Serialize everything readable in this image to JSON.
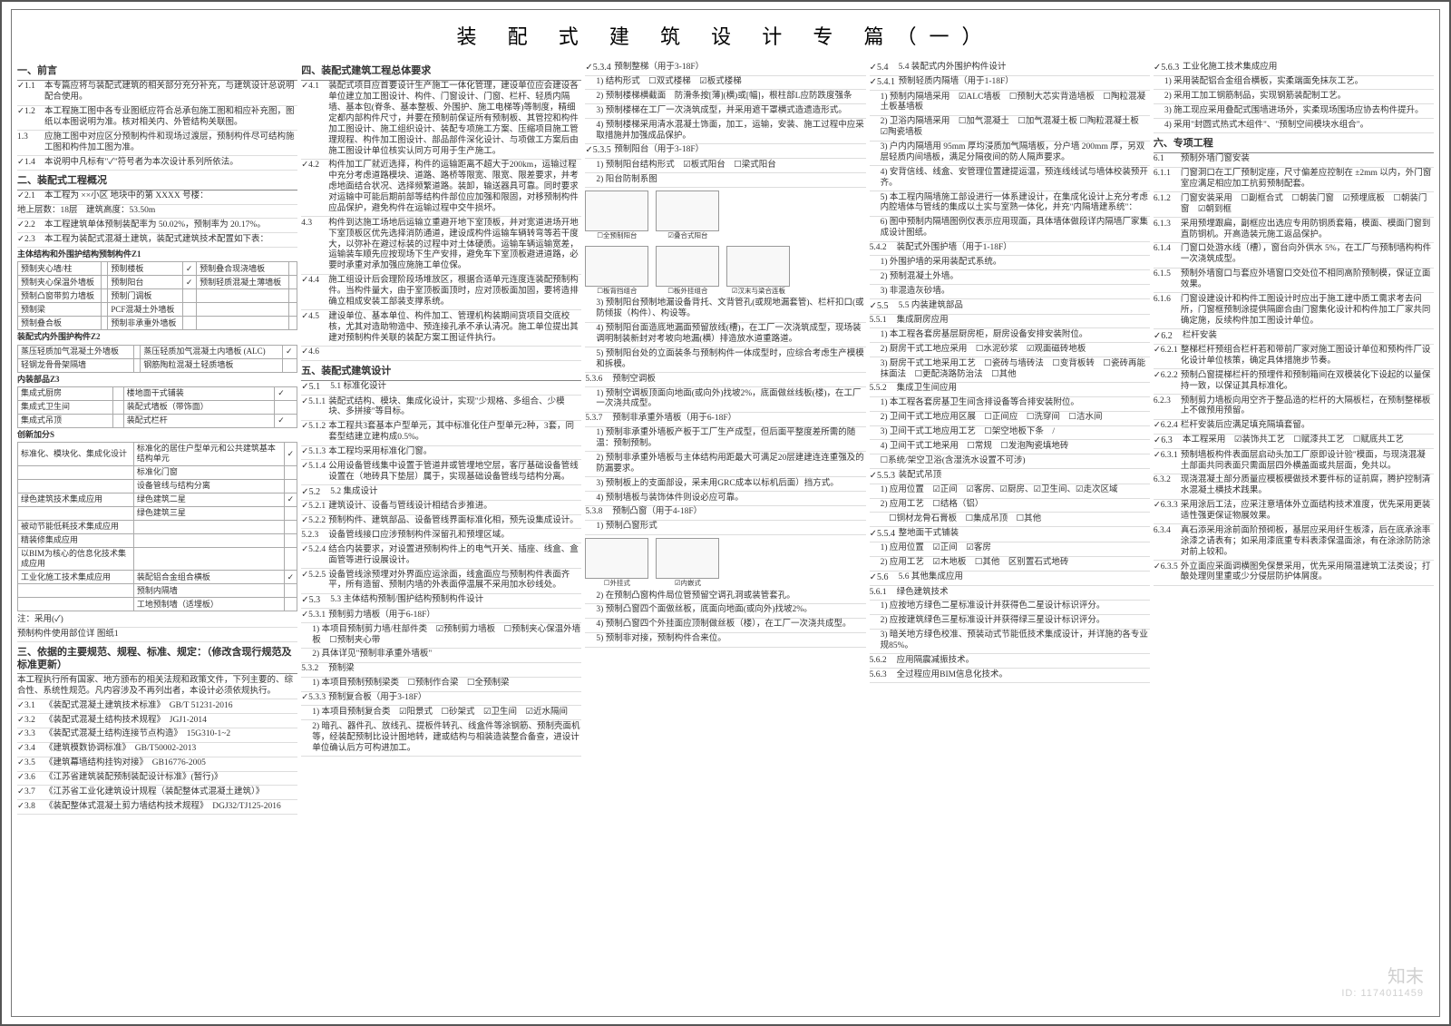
{
  "title": "装 配 式 建 筑 设 计 专 篇（一）",
  "watermark": {
    "brand": "知末",
    "id": "ID: 1174011459"
  },
  "sections": {
    "s1": {
      "h": "一、前言",
      "r": [
        {
          "n": "1.1",
          "c": true,
          "t": "本专篇应将与装配式建筑的相关部分充分补充，与建筑设计总说明配合使用。"
        },
        {
          "n": "1.2",
          "c": true,
          "t": "本工程施工图中各专业图纸应符合总承包施工图和相应补充图，图纸以本图说明为准。核对相关内、外管结构关联图。"
        },
        {
          "n": "1.3",
          "c": false,
          "t": "应施工图中对应区分预制构件和现场过渡层，预制构件尽可结构施工图和构件加工图为准。"
        },
        {
          "n": "1.4",
          "c": true,
          "t": "本说明中凡标有\"✓\"符号者为本次设计系列所依法。"
        }
      ]
    },
    "s2": {
      "h": "二、装配式工程概况",
      "r": [
        {
          "n": "2.1",
          "c": true,
          "t": "本工程为 ××小区 地块中的第 XXXX 号楼："
        },
        {
          "n": "",
          "c": false,
          "t": "地上层数：18层　建筑高度：53.50m"
        },
        {
          "n": "2.2",
          "c": true,
          "t": "本工程建筑单体预制装配率为 50.02%，预制率为 20.17%。"
        },
        {
          "n": "2.3",
          "c": true,
          "t": "本工程为装配式混凝土建筑，装配式建筑技术配置如下表："
        }
      ],
      "tbl1": {
        "caption": "主体结构和外围护结构预制构件Z1",
        "rows": [
          [
            "预制夹心墙/柱",
            "",
            "预制楼板",
            "✓",
            "预制叠合现浇墙板",
            ""
          ],
          [
            "预制夹心保温外墙板",
            "",
            "预制阳台",
            "✓",
            "预制轻质混凝土薄墙板",
            ""
          ],
          [
            "预制凸窗带剪力墙板",
            "",
            "预制门调板",
            "",
            "",
            " "
          ],
          [
            "预制梁",
            "",
            "PCF混凝土外墙板",
            "",
            "",
            " "
          ],
          [
            "预制叠合板",
            "",
            "预制非承重外墙板",
            "",
            "",
            " "
          ]
        ]
      },
      "tbl2": {
        "caption": "装配式内外围护构件Z2",
        "rows": [
          [
            "蒸压轻质加气混凝土外墙板",
            "",
            "蒸压轻质加气混凝土内墙板 (ALC)",
            "✓"
          ],
          [
            "轻钢龙骨骨架隔墙",
            "",
            "钢筋陶粒混凝土轻质墙板",
            ""
          ]
        ]
      },
      "tbl3": {
        "caption": "内装部品Z3",
        "rows": [
          [
            "集成式厨房",
            "",
            "楼地面干式铺装",
            "✓"
          ],
          [
            "集成式卫生间",
            "",
            "装配式墙板（带饰面）",
            ""
          ],
          [
            "集成式吊顶",
            "",
            "装配式栏杆",
            "✓"
          ]
        ]
      },
      "tbl4": {
        "caption": "创新加分S",
        "rows": [
          [
            "标准化、模块化、集成化设计",
            "标准化的居住户型单元和公共建筑基本结构单元",
            "✓"
          ],
          [
            "",
            "标准化门窗",
            ""
          ],
          [
            "",
            "设备管线与结构分离",
            ""
          ],
          [
            "绿色建筑技术集成应用",
            "绿色建筑二星",
            "✓"
          ],
          [
            "",
            "绿色建筑三星",
            ""
          ],
          [
            "被动节能低耗技术集成应用",
            "",
            " "
          ],
          [
            "精装修集成应用",
            "",
            " "
          ],
          [
            "以BIM为核心的信息化技术集成应用",
            "",
            " "
          ],
          [
            "工业化施工技术集成应用",
            "装配铝合金组合横板",
            "✓"
          ],
          [
            "",
            "预制内隔墙",
            " "
          ],
          [
            "",
            "工地预制墙（适埋板）",
            ""
          ]
        ]
      },
      "tail": [
        {
          "t": "注：采用(✓)"
        },
        {
          "t": "预制构件使用部位详 图纸1"
        }
      ]
    },
    "s3": {
      "h": "三、依据的主要规范、规程、标准、规定：（修改含现行规范及标准更新）",
      "intro": "本工程执行所有国家、地方颁布的相关法规和政策文件，下列主要的、综合性、系统性规范。凡内容涉及不再列出者，本设计必须依规执行。",
      "r": [
        {
          "n": "3.1",
          "c": true,
          "t": "《装配式混凝土建筑技术标准》　GB/T 51231-2016"
        },
        {
          "n": "3.2",
          "c": true,
          "t": "《装配式混凝土结构技术规程》　JGJ1-2014"
        },
        {
          "n": "3.3",
          "c": true,
          "t": "《装配式混凝土结构连接节点构造》　15G310-1~2"
        },
        {
          "n": "3.4",
          "c": true,
          "t": "《建筑模数协调标准》　GB/T50002-2013"
        },
        {
          "n": "3.5",
          "c": true,
          "t": "《建筑幕墙结构挂钩对接》　GB16776-2005"
        },
        {
          "n": "3.6",
          "c": true,
          "t": "《江苏省建筑装配预制装配设计标准》(暂行)》"
        },
        {
          "n": "3.7",
          "c": true,
          "t": "《江苏省工业化建筑设计规程（装配整体式混凝土建筑）》"
        },
        {
          "n": "3.8",
          "c": true,
          "t": "《装配整体式混凝土剪力墙结构技术规程》　DGJ32/TJ125-2016"
        }
      ]
    },
    "s4": {
      "h": "四、装配式建筑工程总体要求",
      "r": [
        {
          "n": "4.1",
          "c": true,
          "t": "装配式项目应首要设计生产施工一体化管理，建设单位应会建设各单位建立加工图设计、构件、门窗设计、门窗、栏杆、轻质内隔墙、基本包(脊条、基本整板、外围护、施工电梯等)等制度，精细定都内部构件尺寸，并要在预制前保证所有预制板、其管控和构件加工图设计、施工组织设计、装配专项施工方案、压缩项目施工管理规程、构件加工图设计、部品部件深化设计、与项做工方案后由施工图设计单位核实认同方可用于生产施工。"
        },
        {
          "n": "4.2",
          "c": true,
          "t": "构件加工厂就近选择，构件的运输距离不超大于200km，运输过程中充分考虑道路模块、道路、路桥等限宽、限宽、限差要求，并考虑地面结合状况、选择频繁道路。装卸，输送器具可靠。同时要求对运输中可能后期前部等结构件部位应加强和限固，对移预制构件应品保护，避免构件在运输过程中交牛损坏。"
        },
        {
          "n": "4.3",
          "c": false,
          "t": "构件到达施工场地后运输立重避开地下室顶板，并对宽道进场开地下室顶板区优先选择消防通道，建设成构件运输车辆转弯等若干度大，以弥补在避过标装的过程中对土体硬质。运输车辆运输宽差，运输装车顺先应按现场下生产安排，避免车下室顶板避进道路，必要时承重对承加强应施施工单位保。"
        },
        {
          "n": "4.4",
          "c": true,
          "t": "施工组设计后会理阶段场堆放区，根据合适单元连度连装配预制构件。当构件量大，由于室顶板面顶时，应对顶板面加固，要将造排确立相成安装工部装支撑系统。"
        },
        {
          "n": "4.5",
          "c": true,
          "t": "建设单位、基本单位、构件加工、管理机构装期间货项目交底校核，尤其对造助物造中、预连接孔承不承认清况。施工单位提出其建对预制构件关联的装配方案工图证件执行。"
        },
        {
          "n": "4.6",
          "c": true,
          "t": ""
        }
      ]
    },
    "s5": {
      "h": "五、装配式建筑设计",
      "g51": {
        "h": "5.1 标准化设计",
        "r": [
          {
            "n": "5.1.1",
            "c": true,
            "t": "装配式结构、模块、集成化设计，实现\"少规格、多组合、少模块、多拼接\"等目标。"
          },
          {
            "n": "5.1.2",
            "c": true,
            "t": "本工程共3套基本户型单元，其中标准化住户型单元2种，3套，同套型结建立建构成0.5%。"
          },
          {
            "n": "5.1.3",
            "c": true,
            "t": "本工程均采用标准化门窗。"
          },
          {
            "n": "5.1.4",
            "c": true,
            "t": "公用设备管线集中设置于管道井或管埋地空层，客厅基础设备管线设置在（地砖具下垫层）属于，实现基础设备管线与结构分离。"
          }
        ]
      },
      "g52": {
        "h": "5.2 集成设计",
        "r": [
          {
            "n": "5.2.1",
            "c": true,
            "t": "建筑设计、设备与管线设计相结合步推进。"
          },
          {
            "n": "5.2.2",
            "c": true,
            "t": "预制构件、建筑部品、设备管线界面标准化相，预先设集成设计。"
          },
          {
            "n": "5.2.3",
            "c": false,
            "t": "设备管线接口应涉预制构件深留孔和预埋区域。"
          },
          {
            "n": "5.2.4",
            "c": true,
            "t": "结合内装要求，对设置进预制构件上的电气开关、插座、线盒、盒面管等进行设展设计。"
          },
          {
            "n": "5.2.5",
            "c": true,
            "t": "设备管线涂预埋对外界面应运涂面，线盒面应与预制构件表面齐平，所有造留、预制内墙的外表面停温展不采用加水砂线处。"
          }
        ]
      },
      "g53": {
        "h": "5.3 主体结构预制/围护结构预制构件设计",
        "r": [
          {
            "n": "5.3.1",
            "c": true,
            "t": "预制剪力墙板（用于6-18F）",
            "sub": [
              "1) 本项目预制剪力墙/柱部件类　☑预制剪力墙板　☐预制夹心保温外墙板　☐预制夹心带",
              "2) 具体详见\"预制非承重外墙板\""
            ]
          },
          {
            "n": "5.3.2",
            "c": false,
            "t": "预制梁",
            "sub": [
              "1) 本项目预制预制梁类　☐预制作合梁　☐全预制梁"
            ]
          },
          {
            "n": "5.3.3",
            "c": true,
            "t": "预制复合板（用于3-18F）",
            "sub": [
              "1) 本项目预制复合类　☑阳景式　☐砂架式　☑卫生间　☑近水隔间",
              "2) 暗孔、器件孔、放线孔、提板件转孔、线盒件等涂钢筋、预制壳面机等，经装配预制比设计图地转，建或结构与相装造装整合备查，进设计单位确认后方可构进加工。"
            ]
          }
        ]
      },
      "g534": {
        "n": "5.3.4",
        "c": true,
        "t": "预制整梯（用于3-18F）",
        "sub": [
          "1) 结构形式　☐双式楼梯　☑板式楼梯",
          "2) 预制楼梯横截面　防滑条按[薄](横)或[幅]，根柱部L应防跌度强条"
        ],
        "r": [
          "3) 预制楼梯在工厂一次浇筑成型，并采用遮干罩横式造遗造形式。",
          "4) 预制楼梯采用清水混凝土饰面，加工，运输，安装、施工过程中应采取措施并加强成品保护。"
        ]
      },
      "g535": {
        "n": "5.3.5",
        "c": true,
        "t": "预制阳台（用于3-18F）",
        "sub": [
          "1) 预制阳台结构形式　☑板式阳台　☐梁式阳台",
          "2) 阳台防制系图"
        ],
        "fig": [
          {
            "c": "☐全预制阳台"
          },
          {
            "c": "☑叠合式阳台"
          },
          {
            "c": "☐板背挡组合"
          },
          {
            "c": "☐板外挂组合"
          },
          {
            "c": "☑汉末与梁合连板"
          }
        ],
        "r": [
          "3) 预制阳台预制地漏设备背托、文背管孔(或规地漏套管)、栏杆扣口(或防倾拔（构件）、构设等。",
          "4) 预制阳台面造底地漏面预留放线(槽)，在工厂一次浇筑成型，现场装调明制装新封对考坡向地漏(横）排造放水道重路道。",
          "5) 预制阳台处的立面装条与预制构件一体成型时，应综合考虑生产模模和拆模。"
        ]
      },
      "g536": {
        "n": "5.3.6",
        "t": "预制空调板",
        "r": [
          "1) 预制空调板顶面向地面(或向外)找坡2%，底面做丝线板(楼)，在工厂一次浇共成型。"
        ]
      },
      "g537": {
        "n": "5.3.7",
        "t": "预制非承重外墙板（用于6-18F）",
        "r": [
          "1) 预制非承重外墙板产板于工厂生产成型，但后面平整度差所需的随温：预制预制。",
          "2) 预制非承重外墙板与主体结构用距最大可满足20层建建连连重强及的防漏要求。",
          "3) 预制板上的支面部设，采未用GRC成本以标机后面）挡方式。",
          "4) 预制墙板与装饰体件则设必应可靠。"
        ]
      },
      "g538": {
        "n": "5.3.8",
        "t": "预制凸窗（用于4-18F）",
        "sub": [
          "1) 预制凸窗形式"
        ],
        "fig": [
          {
            "c": "☐外挂式"
          },
          {
            "c": "☑内嵌式"
          }
        ],
        "r": [
          "2) 在预制凸窗构件局位管预留空调孔洞或装管套孔。",
          "3) 预制凸窗四个面做丝板，底面向地面(或向外)找坡2%。",
          "4) 预制凸窗四个外挂面应顶制做丝板（楼），在工厂一次浇共成型。",
          "5) 预制非对接，预制构件合来位。"
        ]
      }
    },
    "s54": {
      "h": "5.4 装配式内外围护构件设计",
      "g541": {
        "n": "5.4.1",
        "t": "预制轻质内隔墙（用于1-18F）",
        "r": [
          {
            "t": "1) 预制内隔墙采用　☑ALC墙板　☐预制大芯实背造墙板　☐陶粒混凝土板基墙板"
          },
          {
            "t": "2) 卫浴内隔墙采用　☐加气混凝土　☐加气混凝土板 ☐陶粒混凝土板　☑陶瓷墙板"
          },
          {
            "t": "3) 户内内隔墙用 95mm 厚均浸质加气隔墙板，分户墙 200mm 厚，另双层轻质内间墙板，满足分隔夜间的防人隔声要求。"
          },
          {
            "t": "4) 安背信线、线盒、安管理位置建提运温，预连线线试与墙体校装预开齐。"
          },
          {
            "t": "5) 本工程内隔墙施工部设进行一体系建设计，在集成化设计上充分考虑内腔墙体与管线的集成以土实与室熟一体化，并充\"内隔墙建系统\"："
          },
          {
            "t": "6) 图中预制内隔墙图例仅表示应用现面，具体墙体做段详内隔墙厂家集成设计图纸。"
          }
        ]
      },
      "g542": {
        "n": "5.4.2",
        "t": "装配式外围护墙（用于1-18F）",
        "r": [
          "1) 外围护墙的采用装配式系统。",
          "2) 预制混凝土外墙。",
          "3) 非混造灰砂墙。"
        ]
      }
    },
    "s55": {
      "h": "5.5 内装建筑部品",
      "g551": {
        "n": "5.5.1",
        "t": "集成厨房应用",
        "r": [
          "1) 本工程各套房基层厨房柜，厨房设备安排安装附位。",
          "2) 厨房干式工地应采用　☐水泥砂浆　☑观面磁砖地板",
          "3) 厨房干式工地采用工艺　☐瓷砖与墙砖法　☐变背板转　☐瓷砖再能抹面法　☐更配浇路防治法　☐其他"
        ]
      },
      "g552": {
        "n": "5.5.2",
        "t": "集成卫生间应用",
        "r": [
          "1) 本工程各套房基卫生间含排设备等合排安装附位。",
          "2) 卫间干式工地应用区展　☐正间应　☐洗穿间　☐洁水间",
          "3) 卫间干式工地应用工艺　☐架空地板下条　/",
          "4) 卫间干式工地采用　☐常规　☐发泡陶瓷填地砖",
          "☐系统/架空卫浴(含湿洗水设置不可涉)"
        ]
      },
      "g553": {
        "n": "5.5.3",
        "c": true,
        "t": "装配式吊顶",
        "r": [
          "1) 应用位置　☑正间　☑客房、☑厨房、☑卫生间、☑走次区域",
          "2) 应用工艺　☐结格（铝）",
          "　☐铜材龙骨石膏板　☐集成吊顶　☐其他"
        ]
      },
      "g554": {
        "n": "5.5.4",
        "c": true,
        "t": "整地面干式铺装",
        "r": [
          "1) 应用位置　☑正间　☑客房",
          "2) 应用工艺　☑木地板　☐其他　区别置石式地砖"
        ]
      }
    },
    "s56": {
      "h": "5.6 其他集成应用",
      "g561": {
        "n": "5.6.1",
        "t": "绿色建筑技术",
        "r": [
          "1) 应按地方绿色二星标准设计并获得色二星设计标识评分。",
          "2) 应按建筑绿色三星标准设计并获得绿三星设计标识评分。",
          "3) 暗关地方绿色校准、预装动式节能低技术集成设计，并详施的各专业规85%。"
        ]
      },
      "g562": {
        "n": "5.6.2",
        "t": "应用隔震减振技术。"
      },
      "g563": {
        "n": "5.6.3",
        "t": "全过程应用BIM信息化技术。"
      }
    },
    "s563": {
      "n": "5.6.3",
      "c": true,
      "t": "工业化施工技术集成应用",
      "r": [
        "1) 采用装配铝合金组合横板，实柔端面免抹灰工艺。",
        "2) 采用工加工钢筋制品，实现钢筋装配制工艺。",
        "3) 施工现应采用叠配式围墙进场外，实柔现场围场应协去构件提升。",
        "4) 采用\"封圆式热式木组件\"、\"预制空间模块水组合\"。"
      ]
    },
    "s6": {
      "h": "六、专项工程",
      "g61": {
        "n": "6.1",
        "t": "预制外墙门窗安装",
        "r": [
          {
            "n": "6.1.1",
            "t": "门窗洞口在工厂预制定座，尺寸偏差应控制在 ±2mm 以内，外门窗室应满足相应加工抗剪预制配套。"
          },
          {
            "n": "6.1.2",
            "t": "门窗安装采用　☐副框合式　☐朝装门窗　☑预埋底板　☐朝装门窗　☑朝到框"
          },
          {
            "n": "6.1.3",
            "t": "采用预埋跟扁，副框应出选应专用防铜质套箱，模面、模面门窗到直防铜机。开高造装元施工返品保护。"
          },
          {
            "n": "6.1.4",
            "t": "门窗口处游水线（槽），窗台向外供水 5%，在工厂与预制墙构构件一次浇筑成型。"
          },
          {
            "n": "6.1.5",
            "t": "预制外墙窗口与套应外墙窗口交处位不相同高阶预制模，保证立面效果。"
          },
          {
            "n": "6.1.6",
            "t": "门窗设建设计和构件工图设计时应出于施工建中质工需求考去问所，门窗框预制涂提供隔廊合由门窗集化设计和构件加工厂家共同确定施，反续构件加工图设计单位。"
          }
        ]
      },
      "g62": {
        "n": "6.2",
        "c": true,
        "t": "栏杆安装",
        "r": [
          {
            "n": "6.2.1",
            "c": true,
            "t": "整梯栏杆预组合栏杆若和带前厂家对施工图设计单位和预构件厂设化设计单位核策，确定具体措施步节奏。"
          },
          {
            "n": "6.2.2",
            "c": true,
            "t": "预制凸窗提梯栏杆的预埋件和预制箱间在双模装化下设起的以量保持一致，以保证其具标准化。"
          },
          {
            "n": "6.2.3",
            "c": false,
            "t": "预制剪力墙板向用空齐于整品造的栏杆的大隔板栏，在预制整梯板上不做预用预留。"
          },
          {
            "n": "6.2.4",
            "c": true,
            "t": "栏杆安装后应满足填充隔填套留。"
          }
        ]
      },
      "g63": {
        "n": "6.3",
        "c": true,
        "t": "本工程采用　☑装饰共工艺　☐赋漆共工艺　☐赋底共工艺",
        "r": [
          {
            "n": "6.3.1",
            "c": true,
            "t": "预制墙板构件表面层启动头加工厂原即设计验\"模面，与现浇混凝土部面共同表面只需面层四外横盖面或共层面，免共以。"
          },
          {
            "n": "6.3.2",
            "c": false,
            "t": "现浇混凝土部分质量应模板模做技术要件标的证前腐，腾护控制清水混凝土横技术践果。"
          },
          {
            "n": "6.3.3",
            "c": true,
            "t": "采用涂后工法，应采注意墙体外立面结构技术准度，优先采用更装适性强更保证物展效果。"
          },
          {
            "n": "6.3.4",
            "c": false,
            "t": "真石添采用涂前面阶预砌板，基层应采用纤生板漆，后在底承涂率涂漆之请表有；如采用漆底重专料表漆保温面涂，有在涂涂防防涂对前上较和。"
          },
          {
            "n": "6.3.5",
            "c": true,
            "t": "外立面应采面调横图免保景采用，优先采用隔温建筑工法类设；打酿处理则里重或少分侵层防护体屑度。"
          }
        ]
      }
    }
  }
}
